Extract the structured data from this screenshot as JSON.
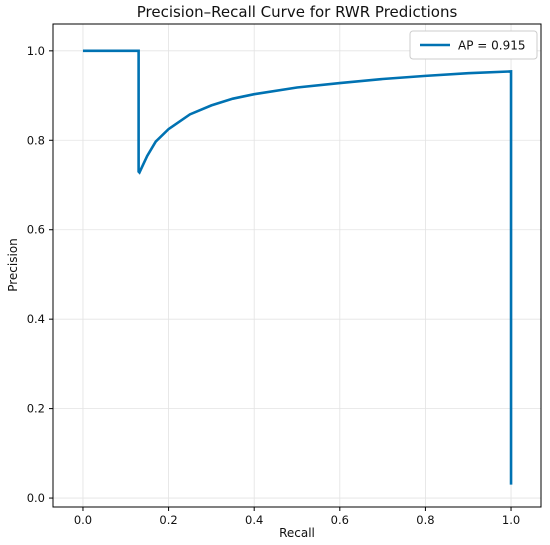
{
  "chart_data": {
    "type": "line",
    "title": "Precision–Recall Curve for RWR Predictions",
    "xlabel": "Recall",
    "ylabel": "Precision",
    "xlim": [
      -0.07,
      1.07
    ],
    "ylim": [
      -0.02,
      1.06
    ],
    "grid": true,
    "legend_position": "top-right",
    "x_ticks": [
      "0.0",
      "0.2",
      "0.4",
      "0.6",
      "0.8",
      "1.0"
    ],
    "x_tick_values": [
      0.0,
      0.2,
      0.4,
      0.6,
      0.8,
      1.0
    ],
    "y_ticks": [
      "0.0",
      "0.2",
      "0.4",
      "0.6",
      "0.8",
      "1.0"
    ],
    "y_tick_values": [
      0.0,
      0.2,
      0.4,
      0.6,
      0.8,
      1.0
    ],
    "series": [
      {
        "name": "AP = 0.915",
        "color": "#0072b2",
        "x": [
          0.0,
          0.13,
          0.13,
          0.132,
          0.15,
          0.17,
          0.2,
          0.25,
          0.3,
          0.35,
          0.4,
          0.5,
          0.6,
          0.7,
          0.8,
          0.9,
          1.0,
          1.0
        ],
        "y": [
          1.0,
          1.0,
          0.73,
          0.728,
          0.765,
          0.797,
          0.825,
          0.858,
          0.878,
          0.893,
          0.903,
          0.918,
          0.928,
          0.937,
          0.944,
          0.95,
          0.954,
          0.03
        ]
      }
    ]
  }
}
